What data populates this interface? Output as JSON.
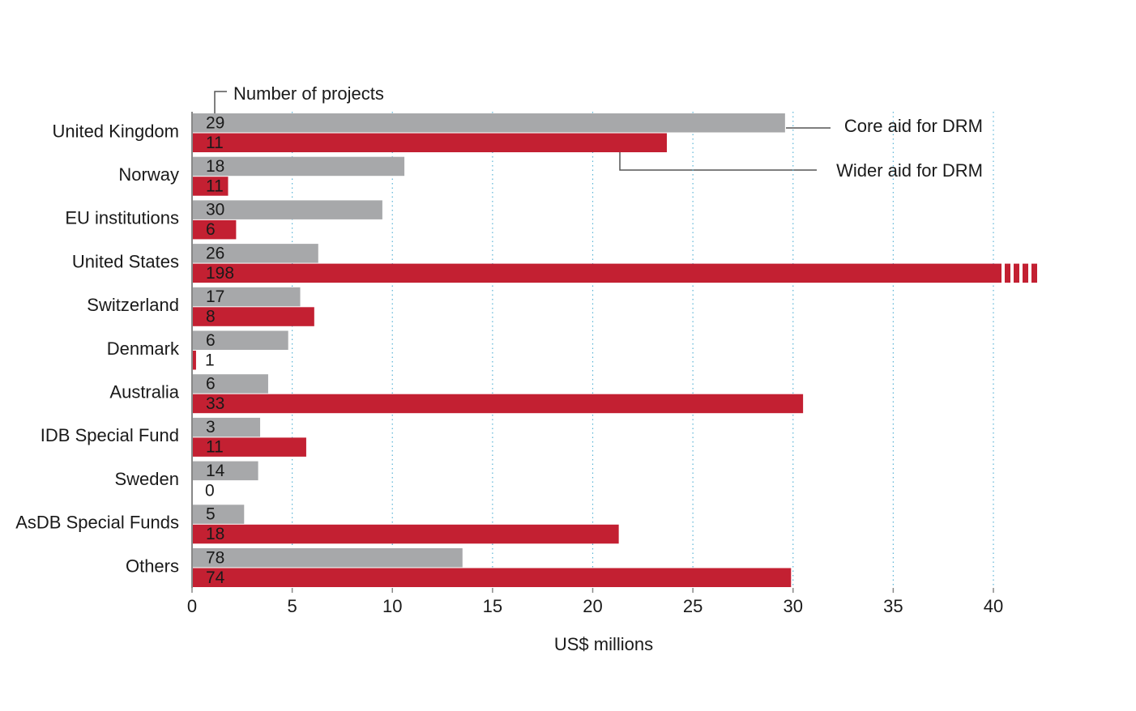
{
  "chart_data": {
    "type": "hbar",
    "x_label": "US$ millions",
    "projects_label": "Number of projects",
    "categories": [
      "United Kingdom",
      "Norway",
      "EU institutions",
      "United States",
      "Switzerland",
      "Denmark",
      "Australia",
      "IDB Special Fund",
      "Sweden",
      "AsDB Special Funds",
      "Others"
    ],
    "series": [
      {
        "name": "Core aid for DRM",
        "color": "#a7a8aa",
        "values": [
          29.6,
          10.6,
          9.5,
          6.3,
          5.4,
          4.8,
          3.8,
          3.4,
          3.3,
          2.6,
          13.5
        ],
        "projects": [
          29,
          18,
          30,
          26,
          17,
          6,
          6,
          3,
          14,
          5,
          78
        ]
      },
      {
        "name": "Wider aid for DRM",
        "color": "#c32032",
        "values": [
          23.7,
          1.8,
          2.2,
          42.3,
          6.1,
          0.2,
          30.5,
          5.7,
          0,
          21.3,
          29.9
        ],
        "projects": [
          11,
          11,
          6,
          198,
          8,
          1,
          33,
          11,
          0,
          18,
          74
        ]
      }
    ],
    "xlim": [
      0,
      40
    ],
    "xticks": [
      0,
      5,
      10,
      15,
      20,
      25,
      30,
      35,
      40
    ],
    "grid": true
  }
}
